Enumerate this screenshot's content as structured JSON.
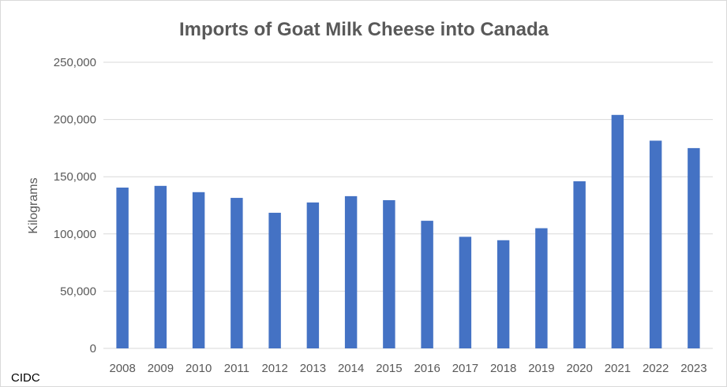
{
  "chart_data": {
    "type": "bar",
    "title": "Imports of Goat Milk Cheese into Canada",
    "xlabel": "",
    "ylabel": "Kilograms",
    "categories": [
      "2008",
      "2009",
      "2010",
      "2011",
      "2012",
      "2013",
      "2014",
      "2015",
      "2016",
      "2017",
      "2018",
      "2019",
      "2020",
      "2021",
      "2022",
      "2023"
    ],
    "values": [
      140500,
      142000,
      136500,
      131500,
      118500,
      127500,
      133000,
      129500,
      111500,
      97500,
      94500,
      105000,
      146000,
      204000,
      181500,
      175000
    ],
    "ylim": [
      0,
      250000
    ],
    "yticks": [
      0,
      50000,
      100000,
      150000,
      200000,
      250000
    ],
    "ytick_labels": [
      "0",
      "50,000",
      "100,000",
      "150,000",
      "200,000",
      "250,000"
    ],
    "grid": true,
    "legend": "none",
    "bar_color": "#4472c4",
    "grid_color": "#d9d9d9"
  },
  "footer": {
    "source": "CIDC"
  }
}
